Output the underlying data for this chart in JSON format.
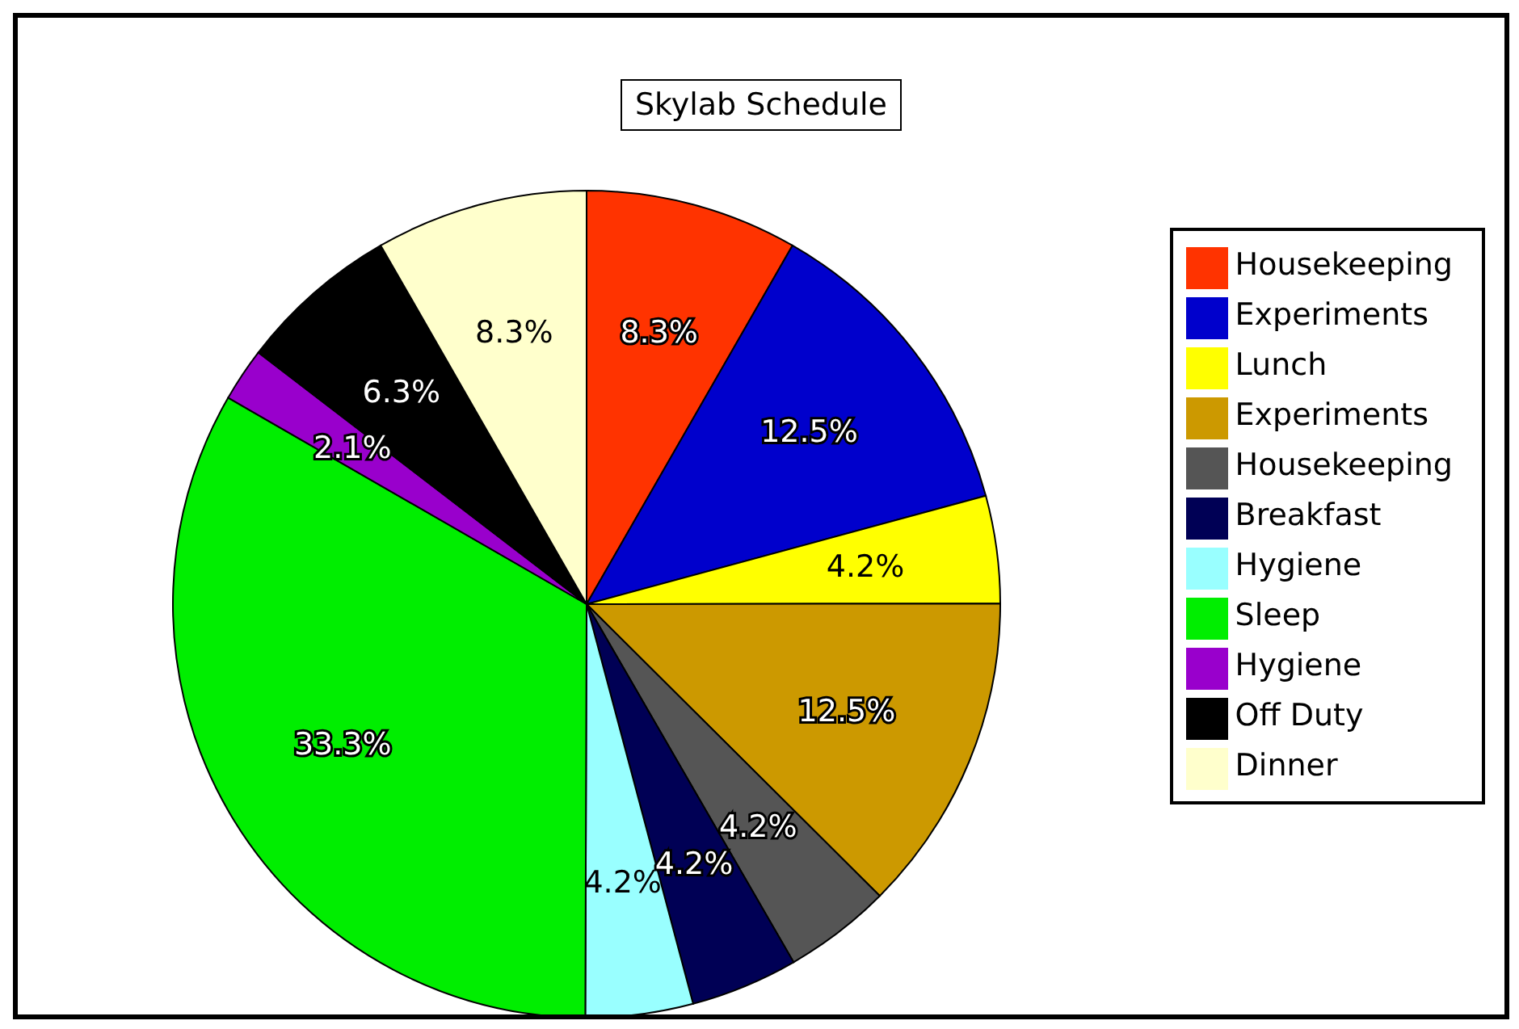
{
  "chart_data": {
    "type": "pie",
    "title": "Skylab Schedule",
    "categories": [
      "Housekeeping",
      "Experiments",
      "Lunch",
      "Experiments",
      "Housekeeping",
      "Breakfast",
      "Hygiene",
      "Sleep",
      "Hygiene",
      "Off Duty",
      "Dinner"
    ],
    "values": [
      8.3,
      12.5,
      4.2,
      12.5,
      4.2,
      4.2,
      4.2,
      33.3,
      2.1,
      6.3,
      8.3
    ],
    "value_labels": [
      "8.3%",
      "12.5%",
      "4.2%",
      "12.5%",
      "4.2%",
      "4.2%",
      "4.2%",
      "33.3%",
      "2.1%",
      "6.3%",
      "8.3%"
    ],
    "colors": [
      "#ff3300",
      "#0000cc",
      "#ffff00",
      "#cc9900",
      "#555555",
      "#000055",
      "#99ffff",
      "#00ee00",
      "#9900cc",
      "#000000",
      "#ffffcc"
    ],
    "legend": "right"
  }
}
